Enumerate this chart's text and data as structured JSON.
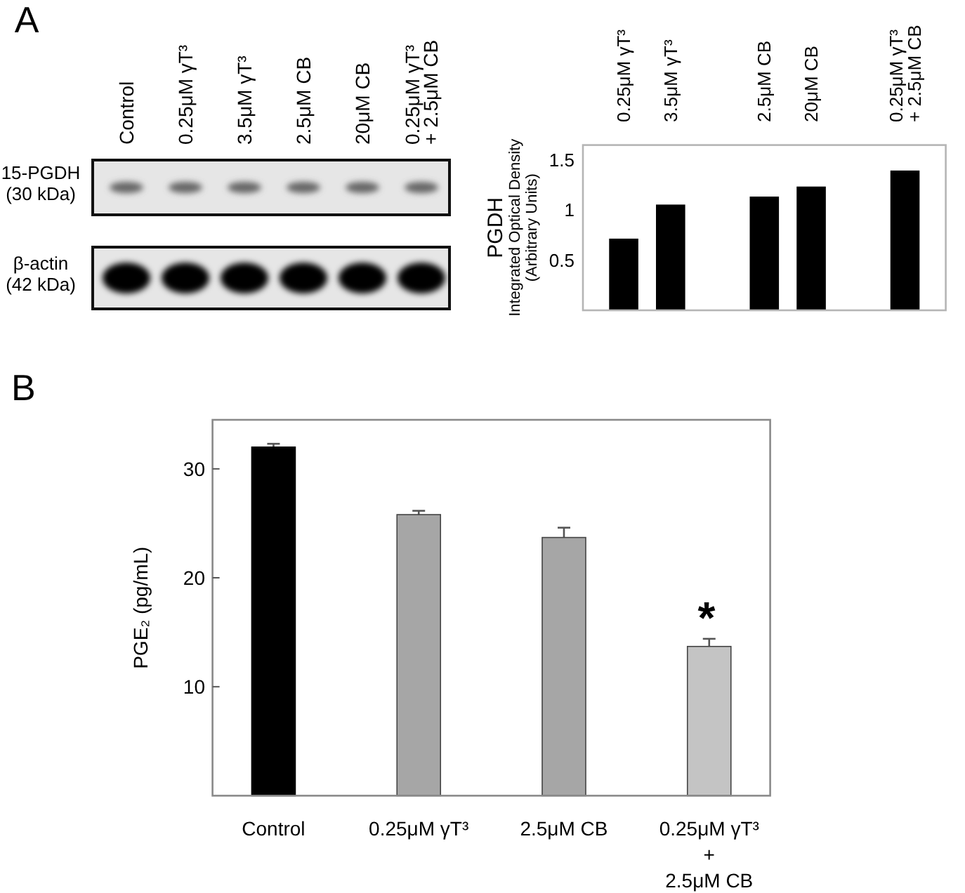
{
  "chart_data": [
    {
      "type": "other",
      "title": "A",
      "categories": [
        "Control",
        "0.25μM γT³",
        "3.5μM γT³",
        "2.5μM CB",
        "20μM CB",
        "0.25μM γT³\n+ 2.5μM CB"
      ],
      "y_categories": [
        "15-PGDH\n(30 kDa)",
        "β-actin\n(42 kDa)"
      ]
    },
    {
      "type": "bar",
      "categories": [
        "0.25μM γT³",
        "3.5μM γT³",
        null,
        "2.5μM CB",
        "20μM CB",
        null,
        "0.25μM γT³\n+ 2.5μM CB"
      ],
      "values": [
        0.71,
        1.05,
        null,
        1.13,
        1.23,
        null,
        1.39
      ],
      "color": "#000000",
      "ylabel": "PGDH\nIntegrated Optical Density\n(Arbitrary Units)",
      "ylim": [
        0,
        1.65
      ],
      "yticks": [
        0.5,
        1,
        1.5
      ]
    },
    {
      "type": "bar",
      "title": "B",
      "categories": [
        "Control",
        "0.25μM γT³",
        "2.5μM CB",
        "0.25μM γT³\n+\n2.5μM CB"
      ],
      "values": [
        32.0,
        25.8,
        23.7,
        13.7
      ],
      "errors": [
        0.3,
        0.35,
        0.9,
        0.7
      ],
      "colors": [
        "#000000",
        "#a6a6a6",
        "#a6a6a6",
        "#c4c4c4"
      ],
      "ylabel": "PGE₂ (pg/mL)",
      "ylim": [
        0,
        34.5
      ],
      "yticks": [
        10,
        20,
        30
      ],
      "annotations": [
        "*"
      ]
    }
  ]
}
